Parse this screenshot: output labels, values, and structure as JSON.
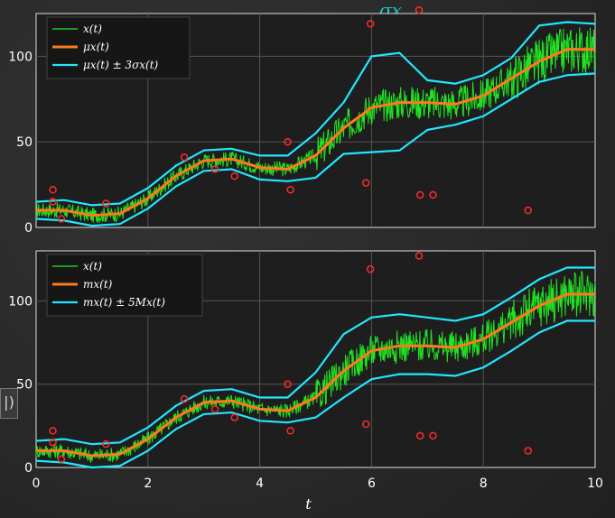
{
  "annotation_top": "σx",
  "side_label": "|)",
  "colors": {
    "x": "#22ee22",
    "mean": "#ff7a1a",
    "band": "#22e6ff",
    "outlier": "#ff2a2a",
    "axes_bg": "#1e1e1e"
  },
  "chart_data": [
    {
      "type": "line",
      "title": "",
      "xlabel": "",
      "ylabel": "",
      "xlim": [
        0,
        10
      ],
      "ylim": [
        0,
        125
      ],
      "yticks": [
        "0",
        "50",
        "100"
      ],
      "grid": true,
      "legend_position": "top-left",
      "legend": [
        "x(t)",
        "μx(t)",
        "μx(t) ± 3σx(t)"
      ],
      "x": [
        0,
        0.5,
        1,
        1.5,
        2,
        2.5,
        3,
        3.5,
        4,
        4.5,
        5,
        5.5,
        6,
        6.5,
        7,
        7.5,
        8,
        8.5,
        9,
        9.5,
        10
      ],
      "series": [
        {
          "name": "μx(t)",
          "values": [
            10,
            10,
            7,
            8,
            17,
            30,
            39,
            40,
            35,
            34,
            42,
            58,
            70,
            73,
            73,
            72,
            77,
            87,
            97,
            104,
            104
          ]
        },
        {
          "name": "μx(t) + 3σx(t)",
          "values": [
            15,
            16,
            13,
            14,
            23,
            36,
            45,
            46,
            42,
            42,
            55,
            73,
            100,
            102,
            86,
            84,
            89,
            99,
            118,
            120,
            119
          ]
        },
        {
          "name": "μx(t) - 3σx(t)",
          "values": [
            5,
            4,
            1,
            2,
            11,
            24,
            33,
            34,
            28,
            27,
            29,
            43,
            44,
            45,
            57,
            60,
            65,
            75,
            85,
            89,
            90
          ]
        }
      ],
      "outliers": [
        [
          0.3,
          22
        ],
        [
          0.3,
          15
        ],
        [
          0.45,
          5
        ],
        [
          1.25,
          14
        ],
        [
          2.65,
          41
        ],
        [
          3.2,
          34
        ],
        [
          3.55,
          30
        ],
        [
          4.5,
          50
        ],
        [
          4.55,
          22
        ],
        [
          5.9,
          26
        ],
        [
          5.98,
          119
        ],
        [
          6.85,
          127
        ],
        [
          6.87,
          19
        ],
        [
          7.1,
          19
        ],
        [
          8.8,
          10
        ]
      ]
    },
    {
      "type": "line",
      "title": "",
      "xlabel": "t",
      "ylabel": "",
      "xlim": [
        0,
        10
      ],
      "ylim": [
        0,
        130
      ],
      "xticks": [
        "0",
        "2",
        "4",
        "6",
        "8",
        "10"
      ],
      "yticks": [
        "0",
        "50",
        "100"
      ],
      "grid": true,
      "legend_position": "top-left",
      "legend": [
        "x(t)",
        "mx(t)",
        "mx(t) ± 5Mx(t)"
      ],
      "x": [
        0,
        0.5,
        1,
        1.5,
        2,
        2.5,
        3,
        3.5,
        4,
        4.5,
        5,
        5.5,
        6,
        6.5,
        7,
        7.5,
        8,
        8.5,
        9,
        9.5,
        10
      ],
      "series": [
        {
          "name": "mx(t)",
          "values": [
            10,
            10,
            7,
            8,
            17,
            30,
            39,
            40,
            35,
            34,
            42,
            58,
            70,
            73,
            73,
            72,
            77,
            87,
            97,
            104,
            104
          ]
        },
        {
          "name": "mx(t) + 5Mx(t)",
          "values": [
            16,
            17,
            14,
            15,
            24,
            37,
            46,
            47,
            42,
            42,
            57,
            80,
            90,
            92,
            90,
            88,
            92,
            102,
            113,
            120,
            120
          ]
        },
        {
          "name": "mx(t) - 5Mx(t)",
          "values": [
            4,
            3,
            0,
            1,
            10,
            23,
            32,
            33,
            28,
            27,
            30,
            42,
            53,
            56,
            56,
            55,
            60,
            70,
            81,
            88,
            88
          ]
        }
      ],
      "outliers": [
        [
          0.3,
          22
        ],
        [
          0.3,
          15
        ],
        [
          0.45,
          5
        ],
        [
          1.25,
          14
        ],
        [
          2.65,
          41
        ],
        [
          3.2,
          35
        ],
        [
          3.55,
          30
        ],
        [
          4.5,
          50
        ],
        [
          4.55,
          22
        ],
        [
          5.9,
          26
        ],
        [
          5.98,
          119
        ],
        [
          6.85,
          127
        ],
        [
          6.87,
          19
        ],
        [
          7.1,
          19
        ],
        [
          8.8,
          10
        ]
      ]
    }
  ]
}
